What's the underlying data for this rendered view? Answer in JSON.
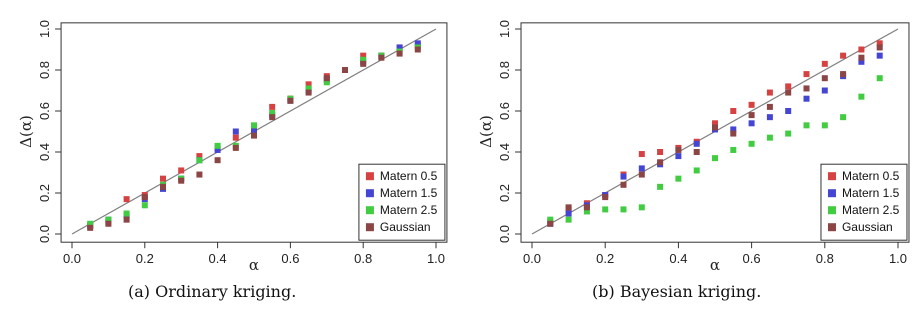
{
  "chart_data": [
    {
      "type": "scatter",
      "caption": "(a) Ordinary kriging.",
      "xlabel": "α",
      "ylabel": "Δ(α)",
      "xlim": [
        0.0,
        1.0
      ],
      "ylim": [
        0.0,
        1.0
      ],
      "x_ticks": [
        "0.0",
        "0.2",
        "0.4",
        "0.6",
        "0.8",
        "1.0"
      ],
      "y_ticks": [
        "0.0",
        "0.2",
        "0.4",
        "0.6",
        "0.8",
        "1.0"
      ],
      "reference_line": "y = x",
      "legend_position": "bottom-right",
      "x": [
        0.05,
        0.1,
        0.15,
        0.2,
        0.25,
        0.3,
        0.35,
        0.4,
        0.45,
        0.5,
        0.55,
        0.6,
        0.65,
        0.7,
        0.75,
        0.8,
        0.85,
        0.9,
        0.95
      ],
      "series": [
        {
          "name": "Matern 0.5",
          "color": "#d64141",
          "values": [
            0.04,
            0.06,
            0.17,
            0.19,
            0.27,
            0.31,
            0.38,
            0.42,
            0.47,
            0.51,
            0.62,
            0.66,
            0.73,
            0.77,
            0.8,
            0.87,
            0.87,
            0.91,
            0.92
          ]
        },
        {
          "name": "Matern 1.5",
          "color": "#4545d4",
          "values": [
            0.04,
            0.07,
            0.09,
            0.17,
            0.22,
            0.27,
            0.36,
            0.41,
            0.5,
            0.5,
            0.58,
            0.65,
            0.7,
            0.75,
            0.8,
            0.84,
            0.87,
            0.91,
            0.93
          ]
        },
        {
          "name": "Matern 2.5",
          "color": "#41cc41",
          "values": [
            0.05,
            0.07,
            0.1,
            0.14,
            0.24,
            0.27,
            0.36,
            0.43,
            0.43,
            0.53,
            0.59,
            0.66,
            0.71,
            0.74,
            0.8,
            0.85,
            0.87,
            0.89,
            0.91
          ]
        },
        {
          "name": "Gaussian",
          "color": "#8b4545",
          "values": [
            0.03,
            0.05,
            0.07,
            0.18,
            0.23,
            0.26,
            0.29,
            0.36,
            0.42,
            0.48,
            0.57,
            0.65,
            0.69,
            0.76,
            0.8,
            0.83,
            0.86,
            0.88,
            0.9
          ]
        }
      ]
    },
    {
      "type": "scatter",
      "caption": "(b) Bayesian kriging.",
      "xlabel": "α",
      "ylabel": "Δ(α)",
      "xlim": [
        0.0,
        1.0
      ],
      "ylim": [
        0.0,
        1.0
      ],
      "x_ticks": [
        "0.0",
        "0.2",
        "0.4",
        "0.6",
        "0.8",
        "1.0"
      ],
      "y_ticks": [
        "0.0",
        "0.2",
        "0.4",
        "0.6",
        "0.8",
        "1.0"
      ],
      "reference_line": "y = x",
      "legend_position": "bottom-right",
      "x": [
        0.05,
        0.1,
        0.15,
        0.2,
        0.25,
        0.3,
        0.35,
        0.4,
        0.45,
        0.5,
        0.55,
        0.6,
        0.65,
        0.7,
        0.75,
        0.8,
        0.85,
        0.9,
        0.95
      ],
      "series": [
        {
          "name": "Matern 0.5",
          "color": "#d64141",
          "values": [
            0.06,
            0.12,
            0.15,
            0.19,
            0.29,
            0.39,
            0.4,
            0.42,
            0.45,
            0.54,
            0.6,
            0.63,
            0.69,
            0.72,
            0.78,
            0.83,
            0.87,
            0.9,
            0.93
          ]
        },
        {
          "name": "Matern 1.5",
          "color": "#4545d4",
          "values": [
            0.05,
            0.1,
            0.14,
            0.19,
            0.28,
            0.32,
            0.34,
            0.38,
            0.44,
            0.51,
            0.51,
            0.54,
            0.57,
            0.6,
            0.66,
            0.7,
            0.77,
            0.84,
            0.87
          ]
        },
        {
          "name": "Matern 2.5",
          "color": "#41cc41",
          "values": [
            0.07,
            0.07,
            0.11,
            0.12,
            0.12,
            0.13,
            0.23,
            0.27,
            0.31,
            0.37,
            0.41,
            0.44,
            0.47,
            0.49,
            0.53,
            0.53,
            0.57,
            0.67,
            0.76
          ]
        },
        {
          "name": "Gaussian",
          "color": "#8b4545",
          "values": [
            0.05,
            0.13,
            0.13,
            0.18,
            0.24,
            0.29,
            0.35,
            0.41,
            0.4,
            0.52,
            0.49,
            0.58,
            0.62,
            0.69,
            0.71,
            0.76,
            0.78,
            0.86,
            0.91
          ]
        }
      ]
    }
  ]
}
